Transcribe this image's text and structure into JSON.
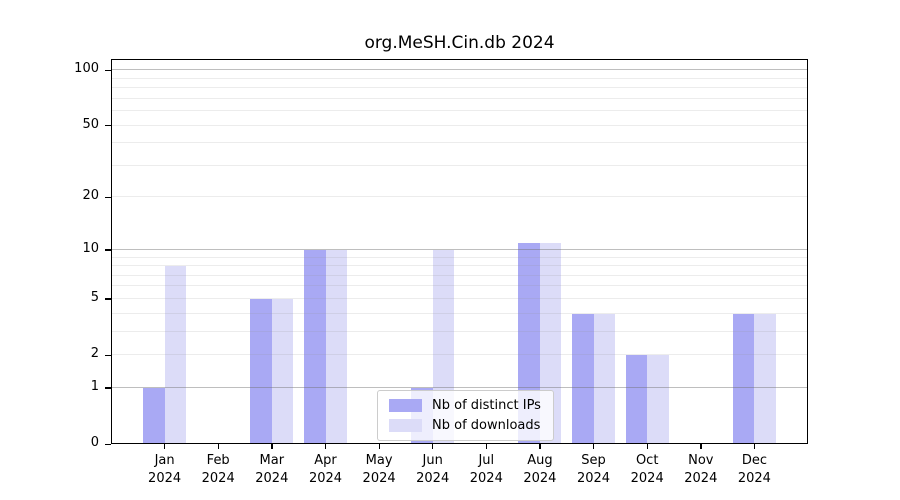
{
  "chart_data": {
    "type": "bar",
    "title": "org.MeSH.Cin.db 2024",
    "categories": [
      "Jan",
      "Feb",
      "Mar",
      "Apr",
      "May",
      "Jun",
      "Jul",
      "Aug",
      "Sep",
      "Oct",
      "Nov",
      "Dec"
    ],
    "x_sublabel": "2024",
    "series": [
      {
        "name": "Nb of distinct IPs",
        "color": "#a9a9f4",
        "values": [
          1,
          0,
          5,
          10,
          0,
          1,
          0,
          11,
          4,
          2,
          0,
          4
        ]
      },
      {
        "name": "Nb of downloads",
        "color": "#dcdcf8",
        "values": [
          8,
          0,
          5,
          10,
          0,
          10,
          0,
          11,
          4,
          2,
          0,
          4
        ]
      }
    ],
    "y_scale": "log1p",
    "y_axis": {
      "ticks": [
        0,
        1,
        2,
        5,
        10,
        20,
        50,
        100
      ],
      "max": 115
    },
    "x_axis_note": "months of 2024, no axis title",
    "grid": {
      "major": [
        1,
        10,
        100
      ],
      "minor": [
        2,
        3,
        4,
        5,
        6,
        7,
        8,
        9,
        20,
        30,
        40,
        50,
        60,
        70,
        80,
        90
      ],
      "major_color": "rgba(110,110,110,0.45)",
      "minor_color": "rgba(150,150,150,0.18)"
    },
    "legend": {
      "position": "inside-bottom-center"
    },
    "colors": {
      "background": "#ffffff",
      "axis": "#000000",
      "text": "#000000"
    }
  }
}
